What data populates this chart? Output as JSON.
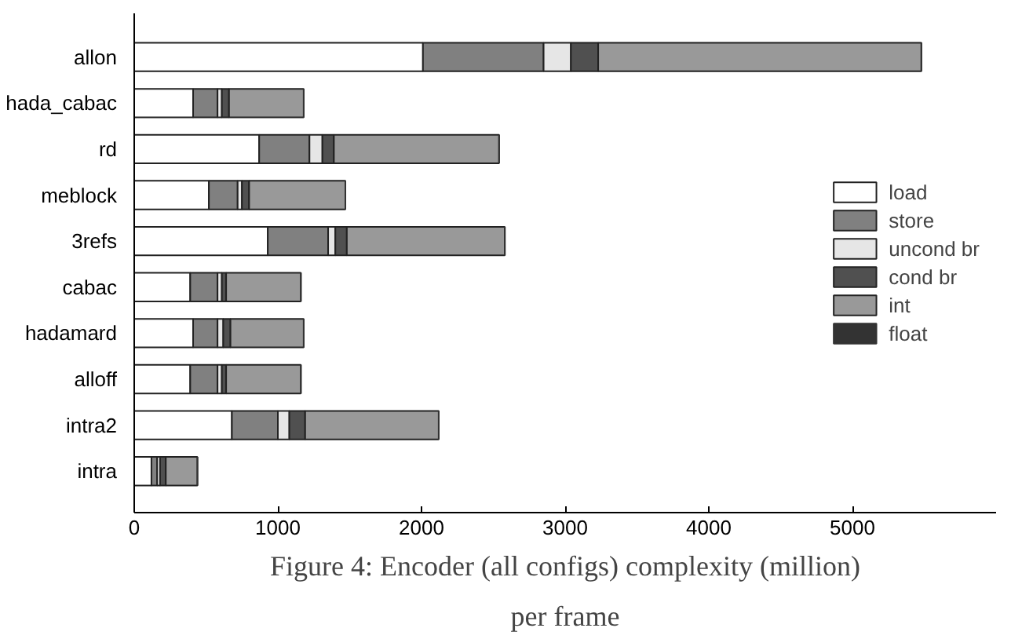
{
  "chart_data": {
    "type": "bar",
    "orientation": "horizontal",
    "stacked": true,
    "title": "Figure 4: Encoder (all configs) complexity (million) per frame",
    "categories": [
      "allon",
      "hada_cabac",
      "rd",
      "meblock",
      "3refs",
      "cabac",
      "hadamard",
      "alloff",
      "intra2",
      "intra"
    ],
    "series": [
      {
        "name": "load",
        "color": "#ffffff",
        "values": [
          2010,
          410,
          870,
          520,
          930,
          390,
          410,
          390,
          680,
          120
        ]
      },
      {
        "name": "store",
        "color": "#808080",
        "values": [
          840,
          170,
          350,
          200,
          420,
          190,
          170,
          190,
          320,
          40
        ]
      },
      {
        "name": "uncond br",
        "color": "#e6e6e6",
        "values": [
          190,
          30,
          90,
          30,
          50,
          30,
          40,
          30,
          80,
          20
        ]
      },
      {
        "name": "cond br",
        "color": "#505050",
        "values": [
          190,
          50,
          80,
          50,
          80,
          30,
          50,
          30,
          110,
          40
        ]
      },
      {
        "name": "int",
        "color": "#999999",
        "values": [
          2250,
          520,
          1150,
          670,
          1100,
          520,
          510,
          520,
          930,
          220
        ]
      },
      {
        "name": "float",
        "color": "#333333",
        "values": [
          0,
          0,
          0,
          0,
          0,
          0,
          0,
          0,
          0,
          0
        ]
      }
    ],
    "xlim": [
      0,
      6000
    ],
    "xticks": [
      0,
      1000,
      2000,
      3000,
      4000,
      5000
    ],
    "grid": false,
    "legend": "right"
  }
}
